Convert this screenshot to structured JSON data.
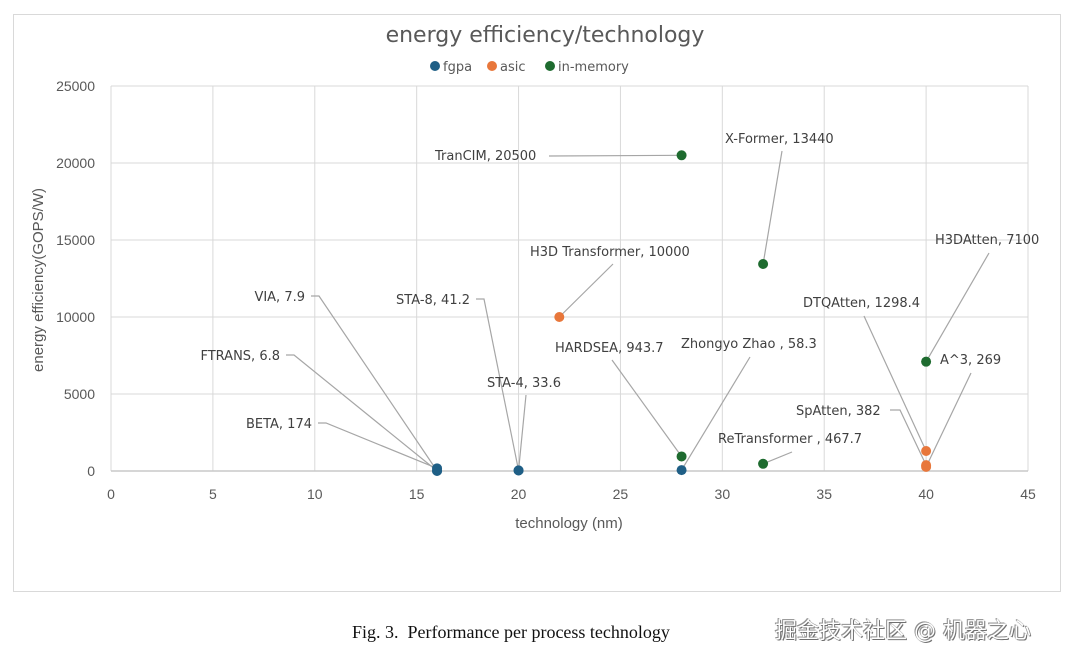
{
  "chart_data": {
    "type": "scatter",
    "title": "energy efficiency/technology",
    "xlabel": "technology (nm)",
    "ylabel": "energy efficiency(GOPS/W)",
    "xlim": [
      0,
      45
    ],
    "ylim": [
      0,
      25000
    ],
    "x_ticks": [
      0,
      5,
      10,
      15,
      20,
      25,
      30,
      35,
      40,
      45
    ],
    "y_ticks": [
      0,
      5000,
      10000,
      15000,
      20000,
      25000
    ],
    "grid": true,
    "legend_position": "top",
    "series": [
      {
        "name": "fgpa",
        "color": "#1f5f86",
        "points": [
          {
            "label": "VIA, 7.9",
            "x": 16,
            "y": 7.9
          },
          {
            "label": "FTRANS, 6.8",
            "x": 16,
            "y": 6.8
          },
          {
            "label": "BETA, 174",
            "x": 16,
            "y": 174
          },
          {
            "label": "STA-8, 41.2",
            "x": 20,
            "y": 41.2
          },
          {
            "label": "STA-4, 33.6",
            "x": 20,
            "y": 33.6
          },
          {
            "label": "Zhongyo Zhao , 58.3",
            "x": 28,
            "y": 58.3
          }
        ]
      },
      {
        "name": "asic",
        "color": "#e8773b",
        "points": [
          {
            "label": "H3D Transformer, 10000",
            "x": 22,
            "y": 10000
          },
          {
            "label": "DTQAtten, 1298.4",
            "x": 40,
            "y": 1298.4
          },
          {
            "label": "SpAtten, 382",
            "x": 40,
            "y": 382
          },
          {
            "label": "A^3, 269",
            "x": 40,
            "y": 269
          }
        ]
      },
      {
        "name": "in-memory",
        "color": "#1e6b2f",
        "points": [
          {
            "label": "TranCIM, 20500",
            "x": 28,
            "y": 20500
          },
          {
            "label": "X-Former, 13440",
            "x": 32,
            "y": 13440
          },
          {
            "label": "HARDSEA, 943.7",
            "x": 28,
            "y": 943.7
          },
          {
            "label": "ReTransformer , 467.7",
            "x": 32,
            "y": 467.7
          },
          {
            "label": "H3DAtten, 7100",
            "x": 40,
            "y": 7100
          }
        ]
      }
    ]
  },
  "caption": "Fig. 3.  Performance per process technology",
  "watermark": "掘金技术社区 @ 机器之心"
}
